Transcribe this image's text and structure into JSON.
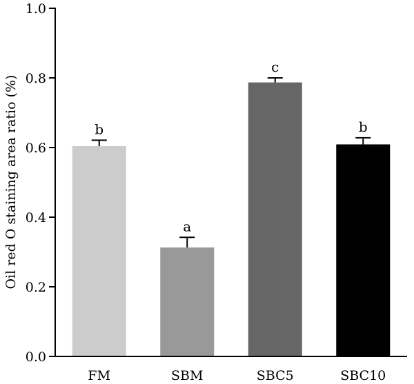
{
  "chart_data": {
    "type": "bar",
    "title": "",
    "xlabel": "",
    "ylabel": "Oil red O staining area ratio (%)",
    "ylim": [
      0,
      1.0
    ],
    "yticks": [
      0.0,
      0.2,
      0.4,
      0.6,
      0.8,
      1.0
    ],
    "yticks_labels": [
      "0.0",
      "0.2",
      "0.4",
      "0.6",
      "0.8",
      "1.0"
    ],
    "grid": false,
    "legend": "none",
    "categories": [
      "FM",
      "SBM",
      "SBC5",
      "SBC10"
    ],
    "values": [
      0.604,
      0.313,
      0.787,
      0.609
    ],
    "errors": [
      0.017,
      0.029,
      0.013,
      0.019
    ],
    "significance": [
      "b",
      "a",
      "c",
      "b"
    ],
    "colors": [
      "#cccccc",
      "#999999",
      "#666666",
      "#000000"
    ]
  }
}
